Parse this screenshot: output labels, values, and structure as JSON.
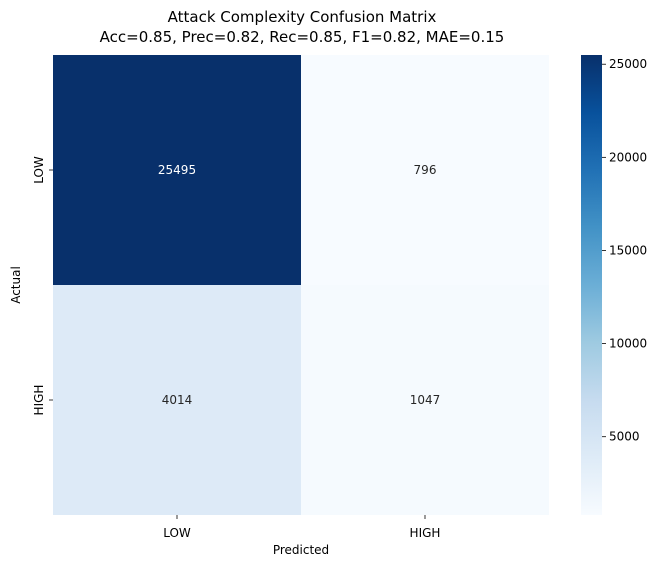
{
  "chart_data": {
    "type": "heatmap",
    "title": "Attack Complexity Confusion Matrix",
    "subtitle": "Acc=0.85, Prec=0.82, Rec=0.85, F1=0.82, MAE=0.15",
    "xlabel": "Predicted",
    "ylabel": "Actual",
    "x_categories": [
      "LOW",
      "HIGH"
    ],
    "y_categories": [
      "LOW",
      "HIGH"
    ],
    "values": [
      [
        25495,
        796
      ],
      [
        4014,
        1047
      ]
    ],
    "colormap": "Blues",
    "colorbar": {
      "min": 796,
      "max": 25495,
      "ticks": [
        5000,
        10000,
        15000,
        20000,
        25000
      ],
      "tick_labels": [
        "5000",
        "10000",
        "15000",
        "20000",
        "25000"
      ]
    },
    "grid": false
  }
}
